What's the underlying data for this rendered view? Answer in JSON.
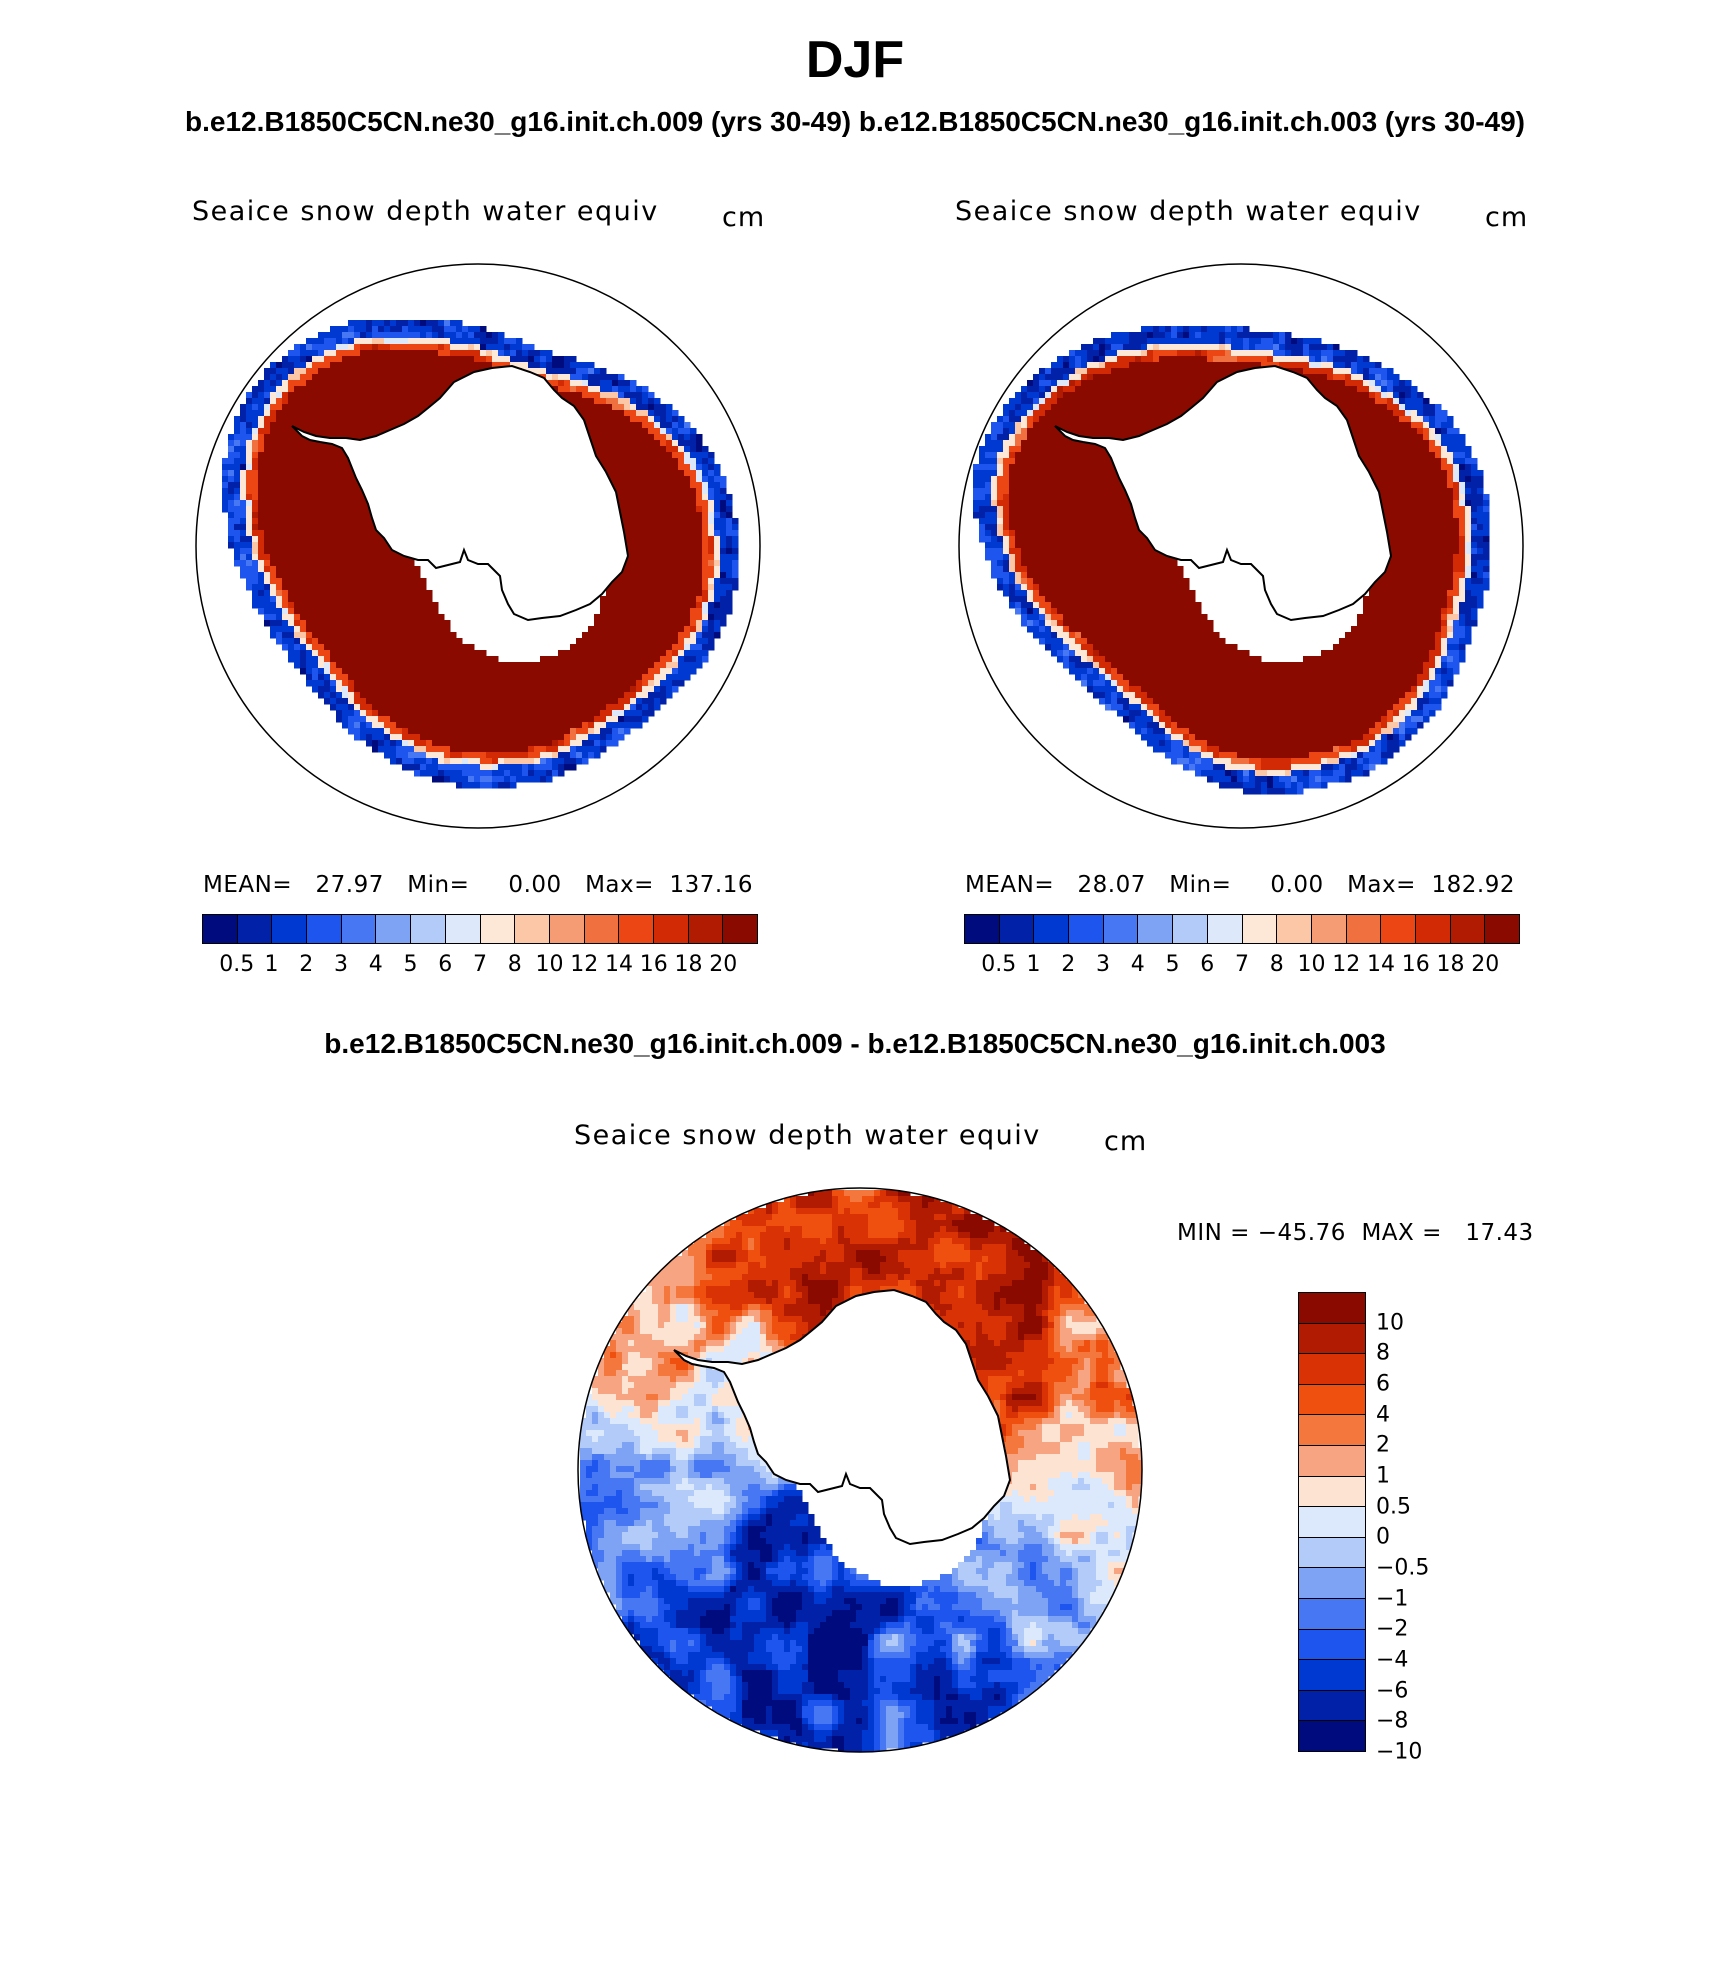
{
  "figure": {
    "season": "DJF",
    "case_titles": "b.e12.B1850C5CN.ne30_g16.init.ch.009 (yrs 30-49) b.e12.B1850C5CN.ne30_g16.init.ch.003 (yrs 30-49)",
    "diff_title": "b.e12.B1850C5CN.ne30_g16.init.ch.009 - b.e12.B1850C5CN.ne30_g16.init.ch.003"
  },
  "colors": {
    "colorbar": [
      "#000c7d",
      "#0021a8",
      "#0039d1",
      "#1f55ef",
      "#4777f2",
      "#7ea3f5",
      "#b3cbf8",
      "#dde9fb",
      "#fde7d6",
      "#fbc7a7",
      "#f59c75",
      "#f1703f",
      "#ec4614",
      "#d22a05",
      "#b01b02",
      "#8a0a00"
    ],
    "diff_colorbar": [
      "#8a0a00",
      "#b01b02",
      "#d93305",
      "#f0500f",
      "#f4783e",
      "#f7a483",
      "#fde3d2",
      "#dce8fb",
      "#b3cbf8",
      "#7ea3f5",
      "#4777f2",
      "#1f55ef",
      "#0039d1",
      "#0021a8",
      "#000c7d"
    ],
    "land": "#ffffff",
    "coast": "#000000"
  },
  "panels": [
    {
      "field_title": "Seaice snow depth water equiv",
      "units": "cm",
      "stats": "MEAN=   27.97   Min=     0.00   Max=  137.16",
      "colorbar_labels": [
        "0.5",
        "1",
        "2",
        "3",
        "4",
        "5",
        "6",
        "7",
        "8",
        "10",
        "12",
        "14",
        "16",
        "18",
        "20"
      ]
    },
    {
      "field_title": "Seaice snow depth water equiv",
      "units": "cm",
      "stats": "MEAN=   28.07   Min=     0.00   Max=  182.92",
      "colorbar_labels": [
        "0.5",
        "1",
        "2",
        "3",
        "4",
        "5",
        "6",
        "7",
        "8",
        "10",
        "12",
        "14",
        "16",
        "18",
        "20"
      ]
    }
  ],
  "diff_panel": {
    "field_title": "Seaice snow depth water equiv",
    "units": "cm",
    "stats": "MIN = −45.76  MAX =   17.43",
    "colorbar_labels": [
      "10",
      "8",
      "6",
      "4",
      "2",
      "1",
      "0.5",
      "0",
      "−0.5",
      "−1",
      "−2",
      "−4",
      "−6",
      "−8",
      "−10"
    ]
  }
}
